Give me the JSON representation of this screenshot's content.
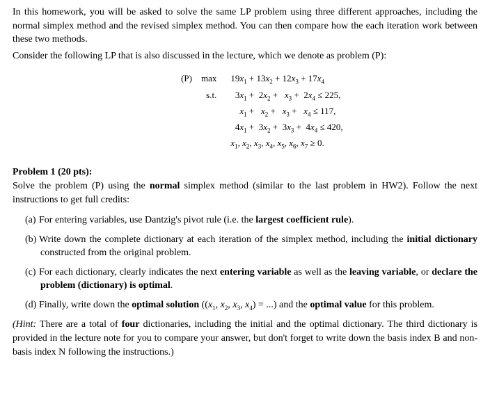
{
  "intro1": "In this homework, you will be asked to solve the same LP problem using three different approaches, including the normal simplex method and the revised simplex method. You can then compare how the each iteration work between these two methods.",
  "intro2": "Consider the following LP that is also discussed in the lecture, which we denote as problem (P):",
  "lp": {
    "label_p": "(P)",
    "label_max": "max",
    "label_st": "s.t.",
    "obj": "19x₁ + 13x₂ + 12x₃ + 17x₄",
    "c1": "3x₁ +  2x₂ +   x₃ +  2x₄ ≤ 225,",
    "c2": "x₁ +   x₂ +   x₃ +   x₄ ≤ 117,",
    "c3": "4x₁ +  3x₂ +  3x₃ +  4x₄ ≤ 420,",
    "nn": "x₁, x₂, x₃, x₄, x₅, x₆, x₇ ≥ 0."
  },
  "problem1": {
    "title": "Problem 1 (20 pts):",
    "body_pre": "Solve the problem (P) using the ",
    "body_bold": "normal",
    "body_post": " simplex method (similar to the last problem in HW2). Follow the next instructions to get full credits:"
  },
  "items": {
    "a_pre": "For entering variables, use Dantzig's pivot rule (i.e. the ",
    "a_bold": "largest coefficient rule",
    "a_post": ").",
    "b_pre": "Write down the complete dictionary at each iteration of the simplex method, including the ",
    "b_bold": "initial dictionary",
    "b_post": " constructed from the original problem.",
    "c_pre": "For each dictionary, clearly indicates the next ",
    "c_bold1": "entering variable",
    "c_mid": " as well as the ",
    "c_bold2": "leaving variable",
    "c_or": ", or ",
    "c_bold3": "declare the problem (dictionary) is optimal",
    "c_post": ".",
    "d_pre": "Finally, write down the ",
    "d_bold1": "optimal solution",
    "d_mid1": " ((x₁, x₂, x₃, x₄) = ...) and the ",
    "d_bold2": "optimal value",
    "d_post": " for this problem."
  },
  "hint": {
    "label": "(Hint:",
    "pre": " There are a total of ",
    "bold": "four",
    "post": " dictionaries, including the initial and the optimal dictionary. The third dictionary is provided in the lecture note for you to compare your answer, but don't forget to write down the basis index B and non-basis index N following the instructions.)"
  },
  "markers": {
    "a": "(a)",
    "b": "(b)",
    "c": "(c)",
    "d": "(d)"
  }
}
